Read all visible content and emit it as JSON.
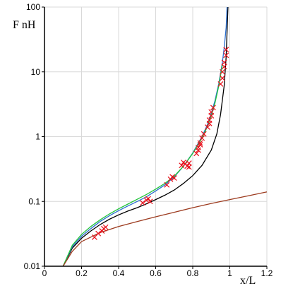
{
  "chart_data": {
    "type": "line",
    "title": "",
    "xlabel": "x/L",
    "ylabel": "F nH",
    "xlim": [
      0,
      1.2
    ],
    "ylim": [
      0.01,
      100
    ],
    "yscale": "log",
    "grid": true,
    "x_ticks": [
      "0",
      "0.2",
      "0.4",
      "0.6",
      "0.8",
      "1",
      "1.2"
    ],
    "y_ticks": [
      "0.01",
      "0.1",
      "1",
      "10",
      "100"
    ],
    "colors": {
      "black": "#000000",
      "blue": "#2a6fcf",
      "green": "#22c43a",
      "brown": "#9c3a1e",
      "markers": "#e8101c",
      "markers_light": "#cc88cc",
      "grid": "#d9d9d9"
    },
    "series": [
      {
        "color": "black",
        "x": [
          0.1,
          0.15,
          0.2,
          0.25,
          0.3,
          0.35,
          0.4,
          0.45,
          0.5,
          0.55,
          0.6,
          0.65,
          0.7,
          0.75,
          0.8,
          0.85,
          0.9,
          0.93,
          0.95,
          0.97,
          0.98,
          0.99
        ],
        "y": [
          0.01,
          0.019,
          0.027,
          0.035,
          0.044,
          0.053,
          0.062,
          0.071,
          0.08,
          0.092,
          0.107,
          0.125,
          0.15,
          0.19,
          0.25,
          0.36,
          0.62,
          1.1,
          2.2,
          6.2,
          17,
          100
        ]
      },
      {
        "color": "blue",
        "x": [
          0.1,
          0.15,
          0.2,
          0.25,
          0.3,
          0.35,
          0.4,
          0.45,
          0.5,
          0.55,
          0.6,
          0.65,
          0.7,
          0.75,
          0.8,
          0.85,
          0.88,
          0.9,
          0.92,
          0.94,
          0.96,
          0.97,
          0.98,
          0.985
        ],
        "y": [
          0.01,
          0.02,
          0.029,
          0.038,
          0.049,
          0.06,
          0.072,
          0.085,
          0.1,
          0.118,
          0.145,
          0.18,
          0.24,
          0.35,
          0.56,
          1.0,
          1.55,
          2.3,
          3.6,
          6.5,
          14,
          24,
          48,
          100
        ]
      },
      {
        "color": "green",
        "x": [
          0.1,
          0.15,
          0.2,
          0.25,
          0.3,
          0.35,
          0.4,
          0.45,
          0.5,
          0.55,
          0.6,
          0.65,
          0.7,
          0.75,
          0.8,
          0.85,
          0.88,
          0.9,
          0.92,
          0.94,
          0.96
        ],
        "y": [
          0.01,
          0.021,
          0.031,
          0.041,
          0.052,
          0.064,
          0.077,
          0.091,
          0.108,
          0.128,
          0.155,
          0.19,
          0.245,
          0.35,
          0.55,
          0.95,
          1.45,
          2.1,
          3.3,
          6.0,
          13
        ]
      },
      {
        "color": "brown",
        "x": [
          0.1,
          0.15,
          0.2,
          0.3,
          0.4,
          0.5,
          0.6,
          0.7,
          0.8,
          0.9,
          1.0,
          1.1,
          1.2
        ],
        "y": [
          0.01,
          0.017,
          0.024,
          0.033,
          0.041,
          0.049,
          0.058,
          0.068,
          0.08,
          0.093,
          0.107,
          0.122,
          0.14
        ]
      }
    ],
    "markers": {
      "color": "markers",
      "x": [
        0.27,
        0.29,
        0.31,
        0.32,
        0.33,
        0.53,
        0.55,
        0.56,
        0.57,
        0.66,
        0.68,
        0.69,
        0.7,
        0.74,
        0.75,
        0.76,
        0.77,
        0.78,
        0.78,
        0.82,
        0.83,
        0.83,
        0.84,
        0.84,
        0.85,
        0.86,
        0.88,
        0.89,
        0.89,
        0.9,
        0.9,
        0.91,
        0.95,
        0.96,
        0.96,
        0.97,
        0.97,
        0.98,
        0.98
      ],
      "y": [
        0.028,
        0.032,
        0.035,
        0.038,
        0.04,
        0.095,
        0.105,
        0.11,
        0.1,
        0.18,
        0.22,
        0.24,
        0.23,
        0.36,
        0.4,
        0.38,
        0.35,
        0.34,
        0.39,
        0.55,
        0.62,
        0.68,
        0.75,
        0.8,
        0.95,
        1.1,
        1.4,
        1.6,
        1.8,
        2.1,
        2.4,
        2.8,
        6.5,
        8.0,
        10.0,
        12.0,
        14.0,
        18.0,
        22.0
      ]
    }
  }
}
